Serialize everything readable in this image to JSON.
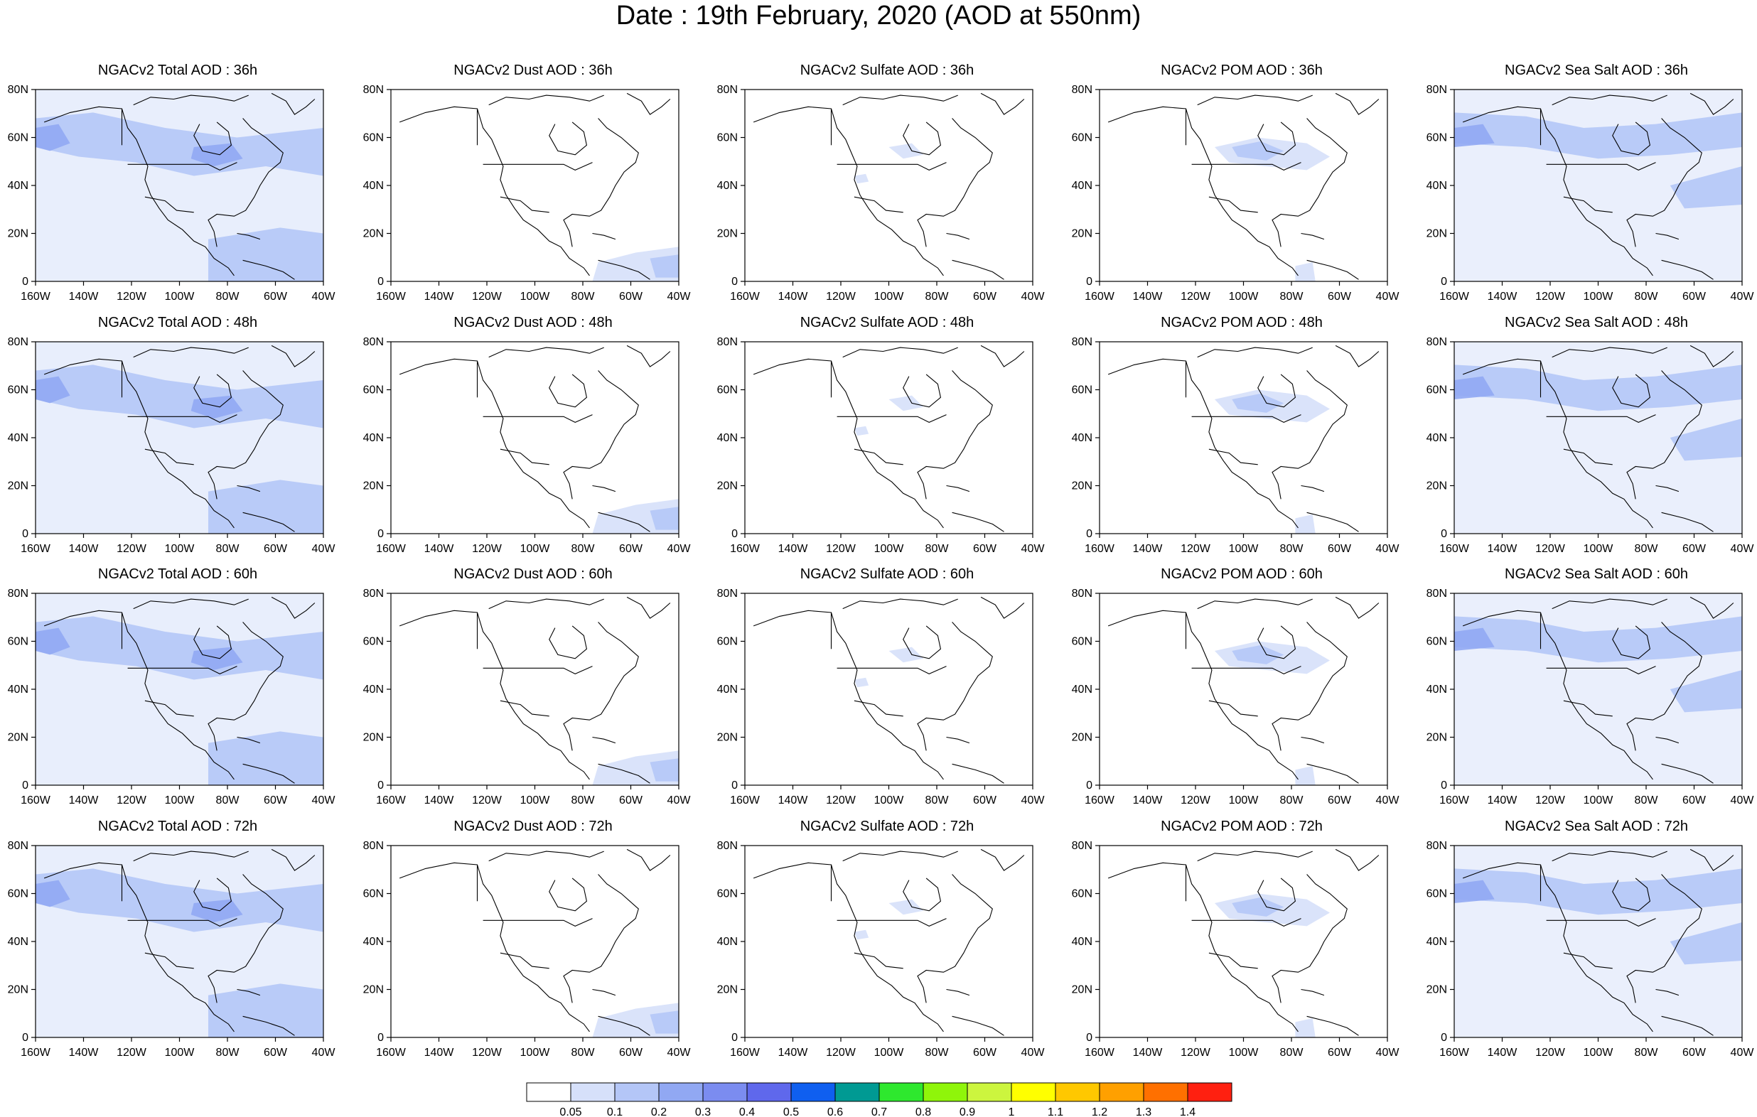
{
  "title": "Date : 19th February, 2020 (AOD at 550nm)",
  "panels": [
    [
      {
        "title": "NGACv2 Total AOD : 36h",
        "species": "total"
      },
      {
        "title": "NGACv2 Dust AOD : 36h",
        "species": "dust"
      },
      {
        "title": "NGACv2 Sulfate AOD : 36h",
        "species": "sulfate"
      },
      {
        "title": "NGACv2 POM AOD : 36h",
        "species": "pom"
      },
      {
        "title": "NGACv2 Sea Salt AOD : 36h",
        "species": "seasalt"
      }
    ],
    [
      {
        "title": "NGACv2 Total AOD : 48h",
        "species": "total"
      },
      {
        "title": "NGACv2 Dust AOD : 48h",
        "species": "dust"
      },
      {
        "title": "NGACv2 Sulfate AOD : 48h",
        "species": "sulfate"
      },
      {
        "title": "NGACv2 POM AOD : 48h",
        "species": "pom"
      },
      {
        "title": "NGACv2 Sea Salt AOD : 48h",
        "species": "seasalt"
      }
    ],
    [
      {
        "title": "NGACv2 Total AOD : 60h",
        "species": "total"
      },
      {
        "title": "NGACv2 Dust AOD : 60h",
        "species": "dust"
      },
      {
        "title": "NGACv2 Sulfate AOD : 60h",
        "species": "sulfate"
      },
      {
        "title": "NGACv2 POM AOD : 60h",
        "species": "pom"
      },
      {
        "title": "NGACv2 Sea Salt AOD : 60h",
        "species": "seasalt"
      }
    ],
    [
      {
        "title": "NGACv2 Total AOD : 72h",
        "species": "total"
      },
      {
        "title": "NGACv2 Dust AOD : 72h",
        "species": "dust"
      },
      {
        "title": "NGACv2 Sulfate AOD : 72h",
        "species": "sulfate"
      },
      {
        "title": "NGACv2 POM AOD : 72h",
        "species": "pom"
      },
      {
        "title": "NGACv2 Sea Salt  AOD : 72h",
        "species": "seasalt"
      }
    ]
  ],
  "map": {
    "lon_range": [
      -160,
      -40
    ],
    "lat_range": [
      0,
      80
    ],
    "lon_ticks": [
      "160W",
      "140W",
      "120W",
      "100W",
      "80W",
      "60W",
      "40W"
    ],
    "lat_ticks": [
      "0",
      "20N",
      "40N",
      "60N",
      "80N"
    ]
  },
  "colorbar": {
    "labels": [
      "0.05",
      "0.1",
      "0.2",
      "0.3",
      "0.4",
      "0.5",
      "0.6",
      "0.7",
      "0.8",
      "0.9",
      "1",
      "1.1",
      "1.2",
      "1.3",
      "1.4"
    ],
    "colors": [
      "#ffffff",
      "#d6e0fa",
      "#b4c6f7",
      "#91a8f3",
      "#7b8cf0",
      "#5f68ec",
      "#0f5ff0",
      "#009a93",
      "#2ee82e",
      "#8ff50a",
      "#ccf53e",
      "#ffff00",
      "#ffc800",
      "#ffa000",
      "#ff7000",
      "#ff2010"
    ]
  }
}
